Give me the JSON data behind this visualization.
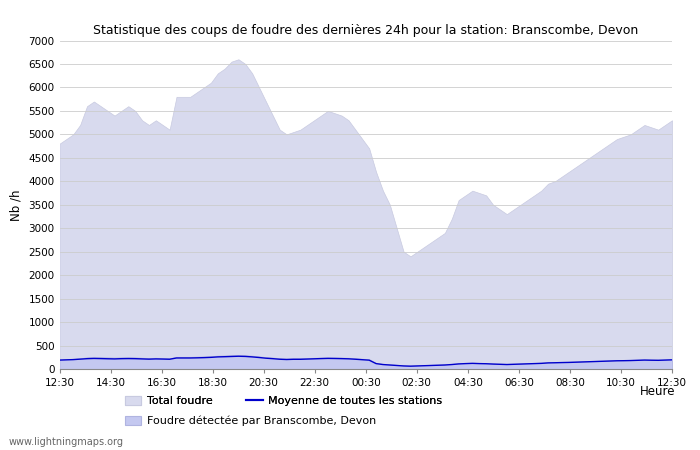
{
  "title": "Statistique des coups de foudre des dernières 24h pour la station: Branscombe, Devon",
  "ylabel": "Nb /h",
  "xlabel": "Heure",
  "ylim": [
    0,
    7000
  ],
  "yticks": [
    0,
    500,
    1000,
    1500,
    2000,
    2500,
    3000,
    3500,
    4000,
    4500,
    5000,
    5500,
    6000,
    6500,
    7000
  ],
  "xtick_labels": [
    "12:30",
    "14:30",
    "16:30",
    "18:30",
    "20:30",
    "22:30",
    "00:30",
    "02:30",
    "04:30",
    "06:30",
    "08:30",
    "10:30",
    "12:30"
  ],
  "watermark": "www.lightningmaps.org",
  "bg_color": "#ffffff",
  "plot_bg_color": "#ffffff",
  "grid_color": "#cccccc",
  "total_foudre_color": "#d8daee",
  "total_foudre_edge_color": "#c8cae0",
  "foudre_detectee_color": "#c4c8f0",
  "foudre_detectee_edge_color": "#b0b4e0",
  "moyenne_color": "#0000cc",
  "total_foudre_values": [
    4800,
    4900,
    5000,
    5200,
    5600,
    5700,
    5600,
    5500,
    5400,
    5500,
    5600,
    5500,
    5300,
    5200,
    5300,
    5200,
    5100,
    5800,
    5800,
    5800,
    5900,
    6000,
    6100,
    6300,
    6400,
    6550,
    6600,
    6500,
    6300,
    6000,
    5700,
    5400,
    5100,
    5000,
    5050,
    5100,
    5200,
    5300,
    5400,
    5500,
    5450,
    5400,
    5300,
    5100,
    4900,
    4700,
    4200,
    3800,
    3500,
    3000,
    2500,
    2400,
    2500,
    2600,
    2700,
    2800,
    2900,
    3200,
    3600,
    3700,
    3800,
    3750,
    3700,
    3500,
    3400,
    3300,
    3400,
    3500,
    3600,
    3700,
    3800,
    3950,
    4000,
    4100,
    4200,
    4300,
    4400,
    4500,
    4600,
    4700,
    4800,
    4900,
    4950,
    5000,
    5100,
    5200,
    5150,
    5100,
    5200,
    5300
  ],
  "foudre_detectee_values": [
    200,
    210,
    220,
    230,
    250,
    260,
    255,
    250,
    245,
    250,
    255,
    250,
    240,
    235,
    240,
    235,
    230,
    260,
    260,
    260,
    265,
    270,
    275,
    285,
    290,
    295,
    300,
    295,
    285,
    270,
    255,
    245,
    230,
    225,
    230,
    230,
    235,
    240,
    245,
    250,
    248,
    245,
    240,
    230,
    220,
    210,
    130,
    110,
    100,
    90,
    80,
    75,
    80,
    85,
    90,
    95,
    100,
    110,
    125,
    130,
    135,
    130,
    128,
    120,
    115,
    110,
    115,
    120,
    125,
    130,
    135,
    145,
    148,
    152,
    155,
    160,
    165,
    170,
    175,
    180,
    185,
    190,
    192,
    195,
    200,
    205,
    202,
    200,
    205,
    210
  ],
  "moyenne_values": [
    190,
    195,
    200,
    210,
    220,
    225,
    222,
    218,
    215,
    220,
    222,
    220,
    215,
    210,
    215,
    212,
    208,
    235,
    235,
    235,
    238,
    242,
    248,
    258,
    262,
    267,
    272,
    268,
    258,
    245,
    230,
    220,
    208,
    202,
    207,
    207,
    212,
    217,
    222,
    226,
    224,
    221,
    217,
    208,
    198,
    188,
    115,
    95,
    85,
    75,
    65,
    60,
    65,
    70,
    75,
    80,
    85,
    95,
    108,
    115,
    120,
    115,
    112,
    105,
    100,
    95,
    100,
    105,
    110,
    115,
    120,
    130,
    133,
    137,
    140,
    145,
    150,
    155,
    160,
    165,
    170,
    175,
    177,
    180,
    185,
    190,
    187,
    185,
    190,
    195
  ],
  "legend_row1": [
    "Total foudre",
    "Moyenne de toutes les stations"
  ],
  "legend_row2": [
    "Foudre détectée par Branscombe, Devon"
  ]
}
